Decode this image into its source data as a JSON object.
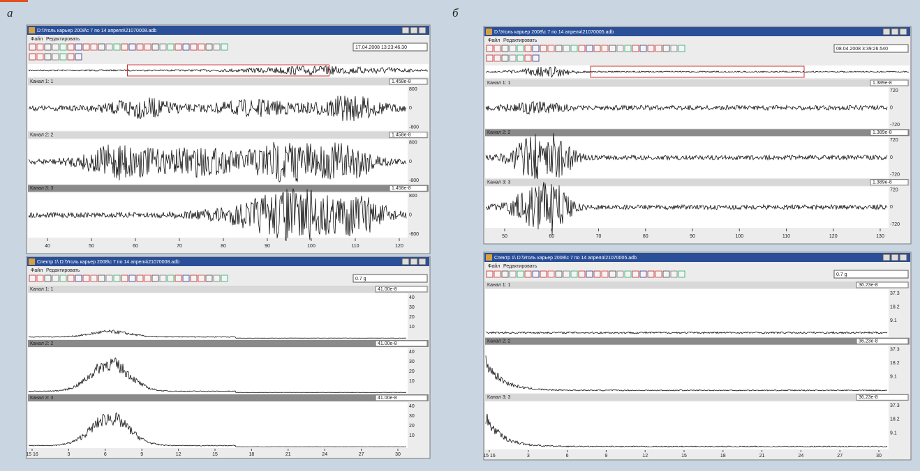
{
  "panels": [
    {
      "label": "а",
      "wave": {
        "title": "D:\\Уголь карьер 2008\\с 7 по 14 апреля\\21070008.adb",
        "menu": [
          "Файл",
          "Редактировать"
        ],
        "timestamp": "17.04.2008 13:23:46.30",
        "channels": [
          {
            "name": "Канал 1: 1",
            "gain": "1.458e-8"
          },
          {
            "name": "Канал 2: 2",
            "gain": "1.458e-8"
          },
          {
            "name": "Канал 3: 3",
            "gain": "1.458e-8"
          }
        ],
        "yticks": [
          "800",
          "0",
          "-800"
        ],
        "xticks": [
          "40",
          "50",
          "60",
          "70",
          "80",
          "90",
          "100",
          "110",
          "120"
        ]
      },
      "spectrum": {
        "title": "Спектр 1\\ D:\\Уголь карьер 2008\\с 7 по 14 апреля\\21070008.adb",
        "menu": [
          "Файл",
          "Редактировать"
        ],
        "field": "0.7 g",
        "channels": [
          {
            "name": "Канал 1: 1",
            "level": "41.00e-8"
          },
          {
            "name": "Канал 2: 2",
            "level": "41.00e-8"
          },
          {
            "name": "Канал 3: 3",
            "level": "41.00e-8"
          }
        ],
        "yticks": [
          "40",
          "30",
          "20",
          "10"
        ],
        "xticks": [
          "15 16",
          "3",
          "6",
          "9",
          "12",
          "15",
          "18",
          "21",
          "24",
          "27",
          "30"
        ]
      }
    },
    {
      "label": "б",
      "wave": {
        "title": "D:\\Уголь карьер 2008\\с 7 по 14 апреля\\21070005.adb",
        "menu": [
          "Файл",
          "Редактировать"
        ],
        "timestamp": "08.04.2008 3:39:26.540",
        "channels": [
          {
            "name": "Канал 1: 1",
            "gain": "1.389e-8"
          },
          {
            "name": "Канал 2: 2",
            "gain": "1.389e-8"
          },
          {
            "name": "Канал 3: 3",
            "gain": "1.389e-8"
          }
        ],
        "yticks": [
          "720",
          "0",
          "-720"
        ],
        "xticks": [
          "50",
          "60",
          "70",
          "80",
          "90",
          "100",
          "110",
          "120",
          "130"
        ]
      },
      "spectrum": {
        "title": "Спектр 1\\ D:\\Уголь карьер 2008\\с 7 по 14 апреля\\21070005.adb",
        "menu": [
          "Файл",
          "Редактировать"
        ],
        "field": "0.7 g",
        "channels": [
          {
            "name": "Канал 1: 1",
            "level": "36.23e-8"
          },
          {
            "name": "Канал 2: 2",
            "level": "36.23e-8"
          },
          {
            "name": "Канал 3: 3",
            "level": "36.23e-8"
          }
        ],
        "yticks": [
          "37.3",
          "18.2",
          "9.1"
        ],
        "xticks": [
          "15 16",
          "3",
          "6",
          "9",
          "12",
          "15",
          "18",
          "21",
          "24",
          "27",
          "30"
        ]
      }
    }
  ]
}
